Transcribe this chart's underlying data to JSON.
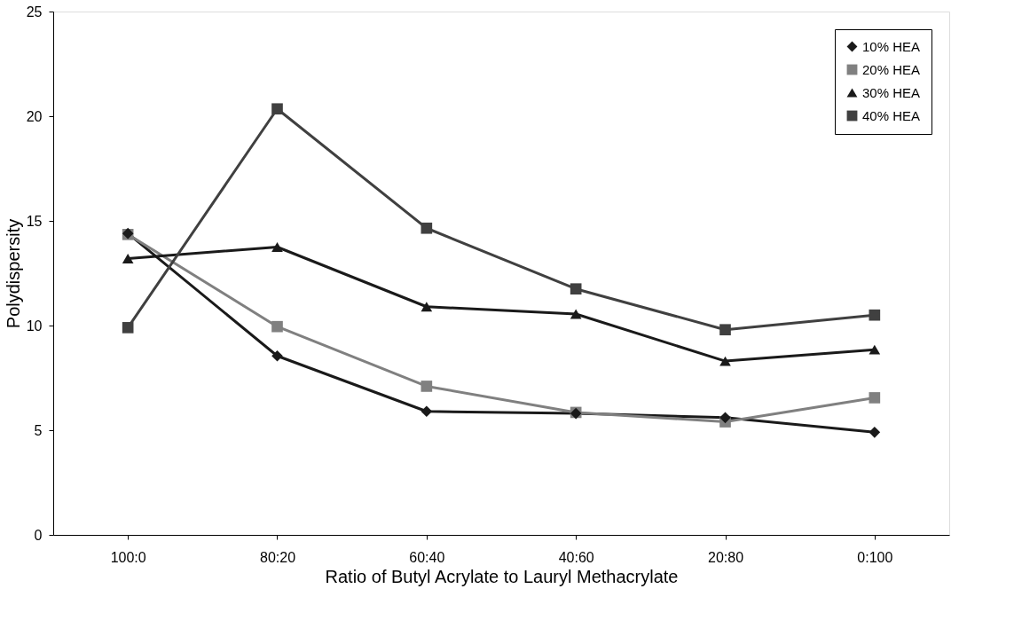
{
  "chart_data": {
    "type": "line",
    "xlabel": "Ratio of Butyl Acrylate to Lauryl Methacrylate",
    "ylabel": "Polydispersity",
    "categories": [
      "100:0",
      "80:20",
      "60:40",
      "40:60",
      "20:80",
      "0:100"
    ],
    "series": [
      {
        "name": "10% HEA",
        "color": "#1a1a1a",
        "marker": "diamond",
        "values": [
          14.4,
          8.55,
          5.9,
          5.8,
          5.6,
          4.9
        ]
      },
      {
        "name": "20% HEA",
        "color": "#808080",
        "marker": "square",
        "values": [
          14.35,
          9.95,
          7.1,
          5.85,
          5.4,
          6.55
        ]
      },
      {
        "name": "30% HEA",
        "color": "#1a1a1a",
        "marker": "triangle",
        "values": [
          13.2,
          13.75,
          10.9,
          10.55,
          8.3,
          8.85
        ]
      },
      {
        "name": "40% HEA",
        "color": "#404040",
        "marker": "square",
        "values": [
          9.9,
          20.35,
          14.65,
          11.75,
          9.8,
          10.5
        ]
      }
    ],
    "ylim": [
      0,
      25
    ],
    "yticks": [
      0,
      5,
      10,
      15,
      20,
      25
    ],
    "grid": false,
    "legend": "top right",
    "line_style": "solid"
  }
}
